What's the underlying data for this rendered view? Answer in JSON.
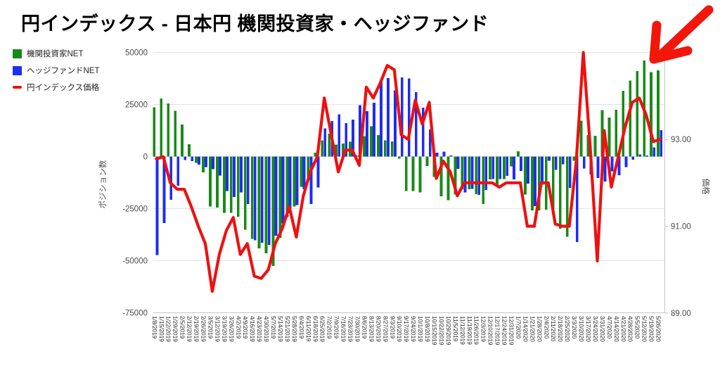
{
  "title": "円インデックス - 日本円 機関投資家・ヘッジファンド",
  "colors": {
    "institutional_green": "#188a18",
    "hedgefund_blue": "#1e2df2",
    "price_red": "#ef1010",
    "gridline": "#e3e3e3",
    "axis_line": "#c4c4c4",
    "tick_text": "#4d4d4d",
    "date_text": "#262626",
    "arrow_red": "#f3160b"
  },
  "legend": [
    {
      "label": "機関投資家NET",
      "color": "#188a18",
      "type": "square"
    },
    {
      "label": "ヘッジファンドNET",
      "color": "#1e2df2",
      "type": "square"
    },
    {
      "label": "円インデックス価格",
      "color": "#ef1010",
      "type": "line"
    }
  ],
  "annotations": {
    "arrow": "hand-drawn red arrow pointing to the last green bars (5/19-5/26/2020)"
  },
  "chart_data": {
    "type": "combo-bar-line",
    "title": "円インデックス - 日本円 機関投資家・ヘッジファンド",
    "categories": [
      "1/8/2019",
      "1/15/2019",
      "1/22/2019",
      "1/29/2019",
      "2/5/2019",
      "2/12/2019",
      "2/19/2019",
      "2/26/2019",
      "3/5/2019",
      "3/12/2019",
      "3/19/2019",
      "3/26/2019",
      "4/2/2019",
      "4/9/2019",
      "4/16/2019",
      "4/23/2019",
      "4/30/2019",
      "5/7/2019",
      "5/14/2019",
      "5/21/2019",
      "5/28/2019",
      "6/4/2019",
      "6/11/2019",
      "6/18/2019",
      "6/25/2019",
      "7/2/2019",
      "7/9/2019",
      "7/16/2019",
      "7/23/2019",
      "7/30/2019",
      "8/6/2019",
      "8/13/2019",
      "8/20/2019",
      "8/27/2019",
      "9/3/2019",
      "9/10/2019",
      "9/17/2019",
      "9/24/2019",
      "10/1/2019",
      "10/8/2019",
      "10/15/2019",
      "10/22/2019",
      "10/29/2019",
      "11/5/2019",
      "11/12/2019",
      "11/19/2019",
      "11/26/2019",
      "12/3/2019",
      "12/10/2019",
      "12/17/2019",
      "12/24/2019",
      "12/31/2019",
      "1/7/2020",
      "1/14/2020",
      "1/21/2020",
      "1/28/2020",
      "2/4/2020",
      "2/11/2020",
      "2/18/2020",
      "2/25/2020",
      "3/3/2020",
      "3/10/2020",
      "3/17/2020",
      "3/24/2020",
      "3/31/2020",
      "4/7/2020",
      "4/14/2020",
      "4/21/2020",
      "4/28/2020",
      "5/5/2020",
      "5/12/2020",
      "5/19/2020",
      "5/26/2020"
    ],
    "series": [
      {
        "name": "機関投資家NET",
        "type": "bar",
        "axis": "left",
        "color": "#188a18",
        "values": [
          23700,
          28000,
          25500,
          22100,
          15500,
          6000,
          -3000,
          -7500,
          -24000,
          -24400,
          -27000,
          -27000,
          -28900,
          -35000,
          -39400,
          -44000,
          -46400,
          -52500,
          -39000,
          -29000,
          -24000,
          -14500,
          -9800,
          2000,
          7900,
          11000,
          5800,
          6300,
          7100,
          500,
          9900,
          14600,
          10400,
          7900,
          7300,
          -1000,
          -16500,
          -16500,
          -17100,
          -4500,
          -9800,
          -19100,
          -20800,
          -18200,
          -15700,
          -15700,
          -18000,
          -22700,
          -10900,
          -14000,
          -10700,
          -4700,
          2600,
          -18200,
          -25800,
          -25800,
          -25500,
          -25200,
          -34500,
          -38500,
          -2000,
          17300,
          10400,
          10000,
          22300,
          18900,
          22500,
          31600,
          36600,
          41200,
          46200,
          40600,
          41400
        ]
      },
      {
        "name": "ヘッジファンドNET",
        "type": "bar",
        "axis": "left",
        "color": "#1e2df2",
        "values": [
          -47300,
          -31800,
          -20700,
          -13900,
          -1600,
          -2200,
          -3800,
          -5000,
          -6000,
          -9000,
          -16500,
          -19400,
          -17100,
          -22700,
          -40200,
          -41300,
          -42400,
          -38000,
          -32000,
          -27200,
          -23300,
          -15700,
          -22700,
          -14800,
          13500,
          17200,
          20300,
          16100,
          17800,
          24700,
          21900,
          25900,
          36900,
          37800,
          31800,
          38000,
          37500,
          31000,
          23600,
          13000,
          2000,
          2400,
          500,
          -5800,
          -17100,
          -15400,
          -18400,
          -16000,
          -10700,
          -10700,
          -9200,
          -10900,
          -6900,
          -12900,
          -23800,
          -13500,
          -1900,
          -6400,
          -3600,
          -15000,
          -41000,
          -5700,
          -8600,
          -10300,
          -12000,
          -7000,
          -8800,
          -5000,
          -1400,
          1100,
          550,
          4500,
          12800
        ]
      },
      {
        "name": "円インデックス価格",
        "type": "line",
        "axis": "right",
        "color": "#ef1010",
        "values": [
          92.55,
          92.6,
          92.0,
          91.85,
          91.85,
          91.45,
          91.0,
          90.6,
          89.5,
          90.35,
          90.9,
          91.2,
          90.35,
          90.6,
          89.85,
          89.8,
          90.0,
          90.6,
          90.95,
          91.45,
          90.75,
          91.7,
          92.25,
          92.6,
          93.95,
          93.1,
          92.25,
          92.75,
          92.75,
          92.4,
          94.2,
          93.95,
          94.3,
          94.7,
          94.6,
          93.1,
          93.0,
          93.9,
          93.35,
          93.85,
          92.1,
          92.5,
          92.25,
          91.7,
          92.0,
          92.0,
          92.0,
          92.0,
          92.0,
          91.9,
          92.0,
          92.0,
          92.0,
          91.0,
          91.0,
          92.0,
          92.0,
          91.05,
          91.0,
          91.0,
          92.5,
          95.0,
          92.8,
          90.2,
          93.2,
          91.9,
          92.6,
          93.3,
          93.85,
          93.95,
          93.55,
          92.95,
          93.0
        ]
      }
    ],
    "left_axis": {
      "label": "ポジション数",
      "min": -75000,
      "max": 50000,
      "ticks": [
        {
          "label": "50000",
          "value": 50000
        },
        {
          "label": "25000",
          "value": 25000
        },
        {
          "label": "0",
          "value": 0
        },
        {
          "label": "-25000",
          "value": -25000
        },
        {
          "label": "-50000",
          "value": -50000
        },
        {
          "label": "-75000",
          "value": -75000
        }
      ]
    },
    "right_axis": {
      "label": "価格",
      "min": 89,
      "max": 95,
      "ticks": [
        {
          "label": "93.00",
          "value": 93
        },
        {
          "label": "91.00",
          "value": 91
        },
        {
          "label": "89.00",
          "value": 89
        }
      ]
    },
    "grid": true,
    "legend_position": "left-top"
  }
}
